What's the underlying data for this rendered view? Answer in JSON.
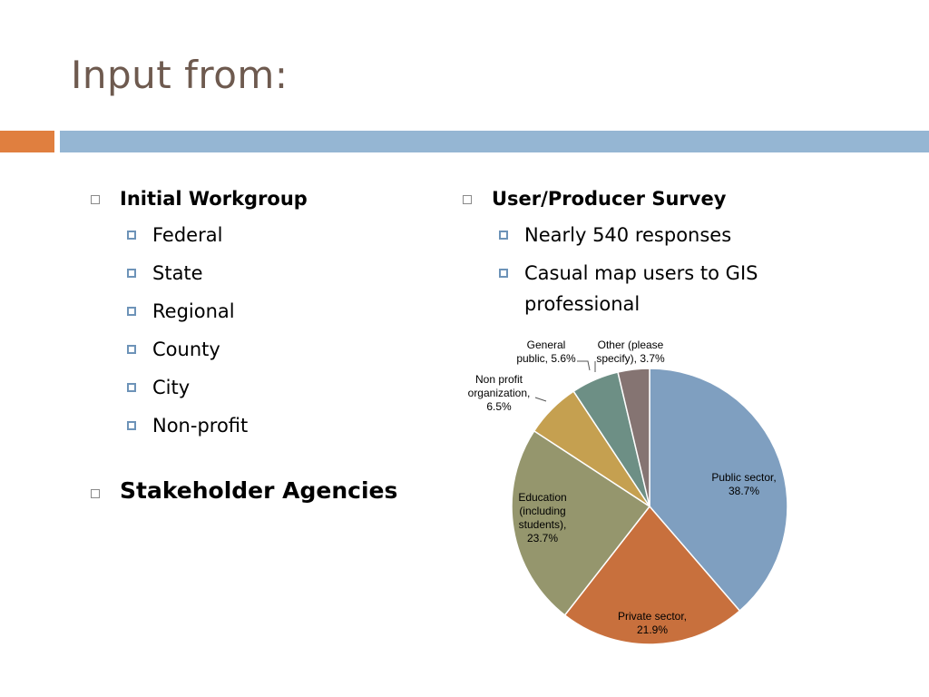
{
  "slide": {
    "title": "Input from:",
    "left_column": {
      "heading": "Initial Workgroup",
      "items": [
        "Federal",
        "State",
        "Regional",
        "County",
        "City",
        "Non-profit"
      ],
      "heading2": "Stakeholder Agencies"
    },
    "right_column": {
      "heading": "User/Producer Survey",
      "items": [
        "Nearly 540 responses",
        "Casual map users to GIS professional"
      ]
    }
  },
  "colors": {
    "title": "#6e5a4f",
    "accent_orange": "#e07f3f",
    "accent_blue": "#95b6d3",
    "bullet_blue": "#6d93b8"
  },
  "chart_data": {
    "type": "pie",
    "slices": [
      {
        "label": [
          "Public sector,",
          "38.7%"
        ],
        "value": 38.7,
        "color": "#7f9fc0"
      },
      {
        "label": [
          "Private sector,",
          "21.9%"
        ],
        "value": 21.9,
        "color": "#c8703d"
      },
      {
        "label": [
          "Education",
          "(including",
          "students),",
          "23.7%"
        ],
        "value": 23.7,
        "color": "#95966d"
      },
      {
        "label": [
          "Non profit",
          "organization,",
          "6.5%"
        ],
        "value": 6.5,
        "color": "#c5a050"
      },
      {
        "label": [
          "General",
          "public, 5.6%"
        ],
        "value": 5.6,
        "color": "#6d8f85"
      },
      {
        "label": [
          "Other (please",
          "specify), 3.7%"
        ],
        "value": 3.7,
        "color": "#857472"
      }
    ]
  }
}
